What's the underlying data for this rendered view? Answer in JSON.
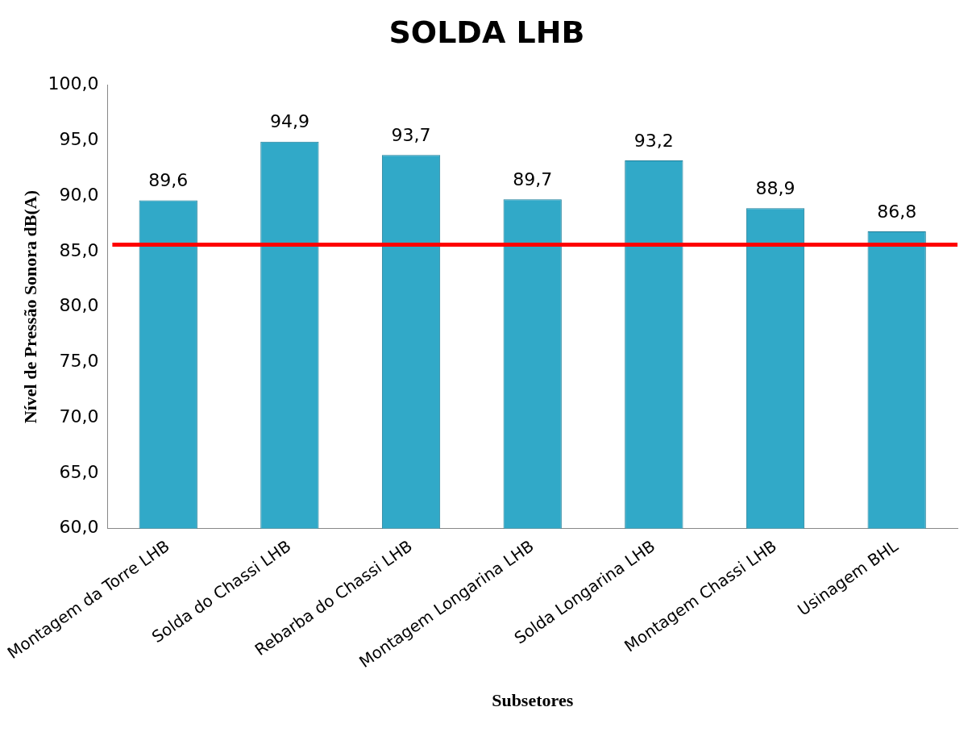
{
  "chart_data": {
    "type": "bar",
    "title": "SOLDA LHB",
    "xlabel": "Subsetores",
    "ylabel": "Nível de Pressão Sonora dB(A)",
    "categories": [
      "Montagem da Torre LHB",
      "Solda do Chassi LHB",
      "Rebarba do Chassi LHB",
      "Montagem Longarina LHB",
      "Solda Longarina LHB",
      "Montagem Chassi LHB",
      "Usinagem BHL"
    ],
    "values": [
      89.6,
      94.9,
      93.7,
      89.7,
      93.2,
      88.9,
      86.8
    ],
    "value_labels": [
      "89,6",
      "94,9",
      "93,7",
      "89,7",
      "93,2",
      "88,9",
      "86,8"
    ],
    "color": "#31a9c8",
    "ylim": [
      60,
      100
    ],
    "yticks": [
      {
        "value": 60,
        "label": "60,0"
      },
      {
        "value": 65,
        "label": "65,0"
      },
      {
        "value": 70,
        "label": "70,0"
      },
      {
        "value": 75,
        "label": "75,0"
      },
      {
        "value": 80,
        "label": "80,0"
      },
      {
        "value": 85,
        "label": "85,0"
      },
      {
        "value": 90,
        "label": "90,0"
      },
      {
        "value": 95,
        "label": "95,0"
      },
      {
        "value": 100,
        "label": "100,0"
      }
    ],
    "ref_lines": [
      {
        "axis": "y",
        "value": 85.6,
        "color": "#ff0000"
      }
    ],
    "grid": false,
    "legend": false
  }
}
